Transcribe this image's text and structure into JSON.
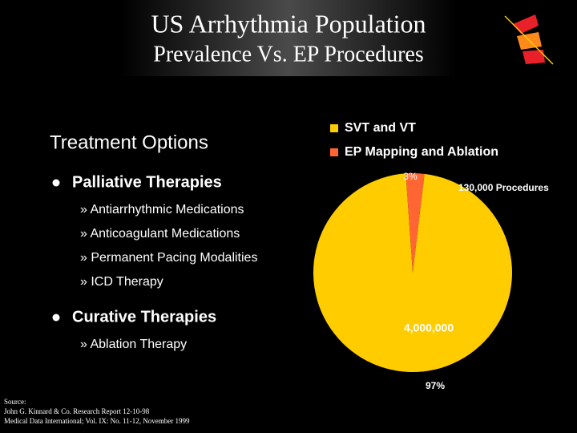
{
  "header": {
    "title": "US Arrhythmia Population",
    "subtitle": "Prevalence Vs. EP Procedures"
  },
  "content": {
    "heading": "Treatment Options",
    "sections": [
      {
        "title": "Palliative Therapies",
        "items": [
          "» Antiarrhythmic Medications",
          "» Anticoagulant Medications",
          "» Permanent Pacing Modalities",
          "» ICD Therapy"
        ]
      },
      {
        "title": "Curative Therapies",
        "items": [
          "» Ablation Therapy"
        ]
      }
    ]
  },
  "source": [
    "Source:",
    "John G. Kinnard & Co. Research Report 12-10-98",
    "Medical Data International; Vol. IX: No. 11-12, November 1999"
  ],
  "chart_data": {
    "type": "pie",
    "categories": [
      "SVT and VT",
      "EP Mapping and Ablation"
    ],
    "values": [
      97,
      3
    ],
    "value_labels": [
      "97%",
      "3%"
    ],
    "colors": [
      "#ffcc00",
      "#ff6633"
    ],
    "annotations": [
      "4,000,000",
      "130,000 Procedures"
    ]
  }
}
